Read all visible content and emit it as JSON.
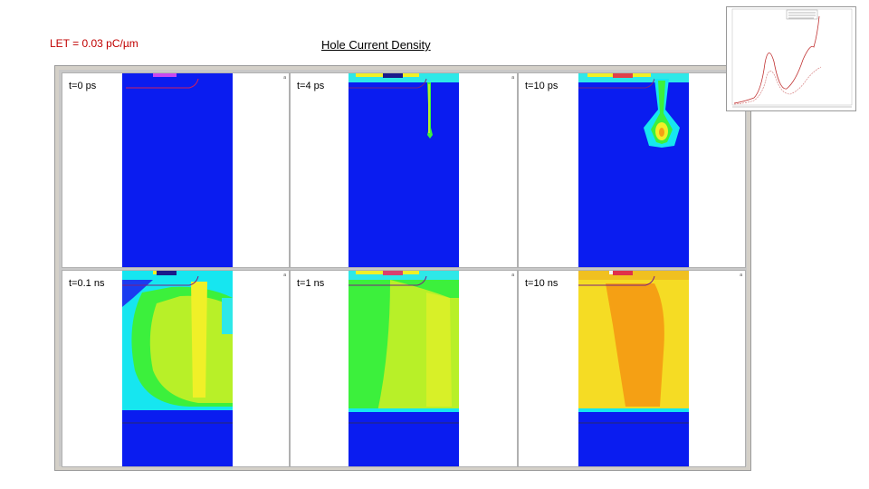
{
  "header": {
    "let_label": "LET = 0.03 pC/µm",
    "title": "Hole Current Density"
  },
  "panels": [
    {
      "label": "t=0 ps"
    },
    {
      "label": "t=4 ps"
    },
    {
      "label": "t=10 ps"
    },
    {
      "label": "t=0.1 ns"
    },
    {
      "label": "t=1 ns"
    },
    {
      "label": "t=10 ns"
    }
  ],
  "panel_corner_text": "a",
  "colors": {
    "blue": "#0a1cf0",
    "cyan": "#16e6f0",
    "green": "#3cf03c",
    "yellow": "#f0f028",
    "orange": "#f5a014",
    "frame": "#d4d0c8",
    "accent_red": "#c00000"
  }
}
